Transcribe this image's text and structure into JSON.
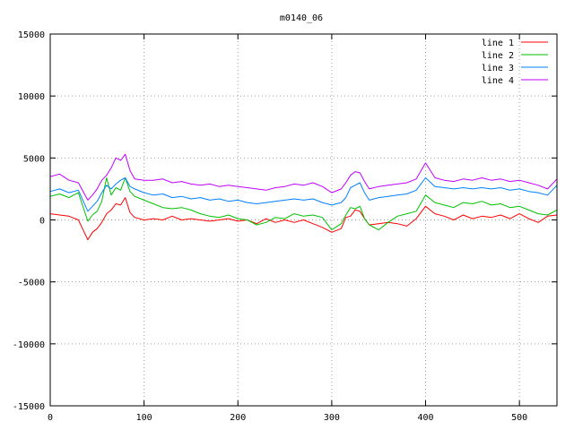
{
  "chart_data": {
    "type": "line",
    "title": "m0140_06",
    "xlabel": "",
    "ylabel": "",
    "xlim": [
      0,
      540
    ],
    "ylim": [
      -15000,
      15000
    ],
    "xticks": [
      0,
      100,
      200,
      300,
      400,
      500
    ],
    "yticks": [
      -15000,
      -10000,
      -5000,
      0,
      5000,
      10000,
      15000
    ],
    "grid": true,
    "legend": "top-right",
    "series": [
      {
        "name": "line 1",
        "color": "#ff0000",
        "x": [
          0,
          10,
          20,
          30,
          40,
          45,
          50,
          55,
          60,
          65,
          70,
          75,
          80,
          85,
          90,
          100,
          110,
          120,
          130,
          140,
          150,
          160,
          170,
          180,
          190,
          200,
          210,
          220,
          230,
          240,
          250,
          260,
          270,
          280,
          290,
          300,
          310,
          315,
          320,
          325,
          330,
          335,
          340,
          350,
          360,
          370,
          380,
          390,
          400,
          410,
          420,
          430,
          440,
          450,
          460,
          470,
          480,
          490,
          500,
          510,
          520,
          530,
          540
        ],
        "y": [
          500,
          400,
          300,
          0,
          -1600,
          -1000,
          -700,
          -200,
          500,
          800,
          1300,
          1200,
          1800,
          600,
          200,
          0,
          100,
          0,
          300,
          0,
          100,
          0,
          -100,
          0,
          100,
          -100,
          0,
          -300,
          100,
          -200,
          0,
          -200,
          0,
          -300,
          -600,
          -1000,
          -700,
          200,
          300,
          800,
          700,
          100,
          -400,
          -300,
          -200,
          -300,
          -500,
          100,
          1100,
          500,
          300,
          0,
          400,
          100,
          300,
          200,
          400,
          100,
          500,
          100,
          -200,
          300,
          400
        ]
      },
      {
        "name": "line 2",
        "color": "#00c000",
        "x": [
          0,
          10,
          20,
          30,
          40,
          45,
          50,
          55,
          60,
          65,
          70,
          75,
          80,
          85,
          90,
          100,
          110,
          120,
          130,
          140,
          150,
          160,
          170,
          180,
          190,
          200,
          210,
          220,
          230,
          240,
          250,
          260,
          270,
          280,
          290,
          300,
          310,
          315,
          320,
          325,
          330,
          335,
          340,
          350,
          360,
          370,
          380,
          390,
          400,
          410,
          420,
          430,
          440,
          450,
          460,
          470,
          480,
          490,
          500,
          510,
          520,
          530,
          540
        ],
        "y": [
          1900,
          2100,
          1800,
          2200,
          -100,
          400,
          700,
          1500,
          3400,
          2000,
          2600,
          2400,
          3400,
          2300,
          1900,
          1600,
          1300,
          1000,
          900,
          1000,
          800,
          500,
          300,
          200,
          400,
          100,
          0,
          -400,
          -200,
          200,
          100,
          500,
          300,
          400,
          200,
          -800,
          -300,
          400,
          1000,
          900,
          1100,
          100,
          -400,
          -800,
          -200,
          300,
          500,
          700,
          2000,
          1400,
          1200,
          1000,
          1400,
          1300,
          1500,
          1200,
          1300,
          1000,
          1100,
          800,
          500,
          400,
          800
        ]
      },
      {
        "name": "line 3",
        "color": "#0080ff",
        "x": [
          0,
          10,
          20,
          30,
          40,
          45,
          50,
          55,
          60,
          65,
          70,
          75,
          80,
          85,
          90,
          100,
          110,
          120,
          130,
          140,
          150,
          160,
          170,
          180,
          190,
          200,
          210,
          220,
          230,
          240,
          250,
          260,
          270,
          280,
          290,
          300,
          310,
          315,
          320,
          325,
          330,
          335,
          340,
          350,
          360,
          370,
          380,
          390,
          400,
          410,
          420,
          430,
          440,
          450,
          460,
          470,
          480,
          490,
          500,
          510,
          520,
          530,
          540
        ],
        "y": [
          2300,
          2500,
          2200,
          2400,
          700,
          1100,
          1500,
          2200,
          2800,
          2500,
          2900,
          3200,
          3400,
          2700,
          2500,
          2200,
          2000,
          2100,
          1800,
          1900,
          1700,
          1800,
          1600,
          1700,
          1500,
          1600,
          1400,
          1300,
          1400,
          1500,
          1600,
          1700,
          1600,
          1700,
          1400,
          1200,
          1400,
          1800,
          2600,
          2800,
          3000,
          2200,
          1600,
          1800,
          1900,
          2000,
          2100,
          2400,
          3400,
          2700,
          2600,
          2500,
          2600,
          2500,
          2600,
          2500,
          2600,
          2400,
          2500,
          2300,
          2200,
          2000,
          2800
        ]
      },
      {
        "name": "line 4",
        "color": "#c000ff",
        "x": [
          0,
          10,
          20,
          30,
          40,
          45,
          50,
          55,
          60,
          65,
          70,
          75,
          80,
          85,
          90,
          100,
          110,
          120,
          130,
          140,
          150,
          160,
          170,
          180,
          190,
          200,
          210,
          220,
          230,
          240,
          250,
          260,
          270,
          280,
          290,
          300,
          310,
          315,
          320,
          325,
          330,
          335,
          340,
          350,
          360,
          370,
          380,
          390,
          400,
          410,
          420,
          430,
          440,
          450,
          460,
          470,
          480,
          490,
          500,
          510,
          520,
          530,
          540
        ],
        "y": [
          3500,
          3700,
          3200,
          3000,
          1600,
          2000,
          2500,
          3200,
          3600,
          4200,
          5000,
          4800,
          5300,
          4000,
          3300,
          3200,
          3200,
          3300,
          3000,
          3100,
          2900,
          2800,
          2900,
          2700,
          2800,
          2700,
          2600,
          2500,
          2400,
          2600,
          2700,
          2900,
          2800,
          3000,
          2700,
          2200,
          2500,
          3000,
          3600,
          3900,
          3800,
          3100,
          2500,
          2700,
          2800,
          2900,
          3000,
          3300,
          4600,
          3400,
          3200,
          3100,
          3300,
          3200,
          3400,
          3200,
          3300,
          3100,
          3200,
          3000,
          2800,
          2500,
          3300
        ]
      }
    ]
  }
}
